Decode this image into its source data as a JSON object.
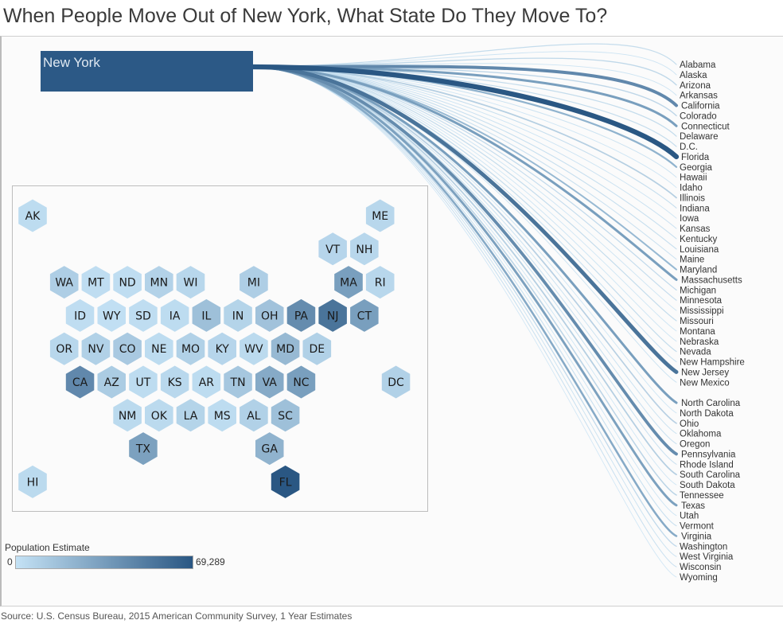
{
  "title": "When People Move Out of New York, What State Do They Move To?",
  "source": "Source: U.S. Census Bureau, 2015 American Community Survey, 1 Year Estimates",
  "colors": {
    "low": "#c4e2f5",
    "high": "#2a5783",
    "origin": "#2c5986"
  },
  "chart_data": {
    "type": "flow-map",
    "origin": "New York",
    "legend": {
      "title": "Population Estimate",
      "min_label": "0",
      "max_label": "69,289",
      "min": 0,
      "max": 69289
    },
    "states": [
      {
        "name": "Alabama",
        "abbr": "AL",
        "value": 5000
      },
      {
        "name": "Alaska",
        "abbr": "AK",
        "value": 1500
      },
      {
        "name": "Arizona",
        "abbr": "AZ",
        "value": 7000
      },
      {
        "name": "Arkansas",
        "abbr": "AR",
        "value": 1500
      },
      {
        "name": "California",
        "abbr": "CA",
        "value": 40000
      },
      {
        "name": "Colorado",
        "abbr": "CO",
        "value": 8000
      },
      {
        "name": "Connecticut",
        "abbr": "CT",
        "value": 28000
      },
      {
        "name": "Delaware",
        "abbr": "DE",
        "value": 5000
      },
      {
        "name": "D.C.",
        "abbr": "DC",
        "value": 5000
      },
      {
        "name": "Florida",
        "abbr": "FL",
        "value": 69289
      },
      {
        "name": "Georgia",
        "abbr": "GA",
        "value": 18000
      },
      {
        "name": "Hawaii",
        "abbr": "HI",
        "value": 2000
      },
      {
        "name": "Idaho",
        "abbr": "ID",
        "value": 1000
      },
      {
        "name": "Illinois",
        "abbr": "IL",
        "value": 12000
      },
      {
        "name": "Indiana",
        "abbr": "IN",
        "value": 4000
      },
      {
        "name": "Iowa",
        "abbr": "IA",
        "value": 1500
      },
      {
        "name": "Kansas",
        "abbr": "KS",
        "value": 2500
      },
      {
        "name": "Kentucky",
        "abbr": "KY",
        "value": 3500
      },
      {
        "name": "Louisiana",
        "abbr": "LA",
        "value": 4000
      },
      {
        "name": "Maine",
        "abbr": "ME",
        "value": 3000
      },
      {
        "name": "Maryland",
        "abbr": "MD",
        "value": 15000
      },
      {
        "name": "Massachusetts",
        "abbr": "MA",
        "value": 28000
      },
      {
        "name": "Michigan",
        "abbr": "MI",
        "value": 6000
      },
      {
        "name": "Minnesota",
        "abbr": "MN",
        "value": 4500
      },
      {
        "name": "Mississippi",
        "abbr": "MS",
        "value": 1500
      },
      {
        "name": "Missouri",
        "abbr": "MO",
        "value": 5000
      },
      {
        "name": "Montana",
        "abbr": "MT",
        "value": 1000
      },
      {
        "name": "Nebraska",
        "abbr": "NE",
        "value": 1500
      },
      {
        "name": "Nevada",
        "abbr": "NV",
        "value": 5000
      },
      {
        "name": "New Hampshire",
        "abbr": "NH",
        "value": 3000
      },
      {
        "name": "New Jersey",
        "abbr": "NJ",
        "value": 52000
      },
      {
        "name": "New Mexico",
        "abbr": "NM",
        "value": 2000
      },
      {
        "name": "North Carolina",
        "abbr": "NC",
        "value": 28000
      },
      {
        "name": "North Dakota",
        "abbr": "ND",
        "value": 1000
      },
      {
        "name": "Ohio",
        "abbr": "OH",
        "value": 11000
      },
      {
        "name": "Oklahoma",
        "abbr": "OK",
        "value": 2000
      },
      {
        "name": "Oregon",
        "abbr": "OR",
        "value": 3000
      },
      {
        "name": "Pennsylvania",
        "abbr": "PA",
        "value": 38000
      },
      {
        "name": "Rhode Island",
        "abbr": "RI",
        "value": 3000
      },
      {
        "name": "South Carolina",
        "abbr": "SC",
        "value": 12000
      },
      {
        "name": "South Dakota",
        "abbr": "SD",
        "value": 1000
      },
      {
        "name": "Tennessee",
        "abbr": "TN",
        "value": 9000
      },
      {
        "name": "Texas",
        "abbr": "TX",
        "value": 27000
      },
      {
        "name": "Utah",
        "abbr": "UT",
        "value": 1500
      },
      {
        "name": "Vermont",
        "abbr": "VT",
        "value": 3500
      },
      {
        "name": "Virginia",
        "abbr": "VA",
        "value": 22000
      },
      {
        "name": "Washington",
        "abbr": "WA",
        "value": 6000
      },
      {
        "name": "West Virginia",
        "abbr": "WV",
        "value": 2000
      },
      {
        "name": "Wisconsin",
        "abbr": "WI",
        "value": 3000
      },
      {
        "name": "Wyoming",
        "abbr": "WY",
        "value": 500
      }
    ]
  }
}
